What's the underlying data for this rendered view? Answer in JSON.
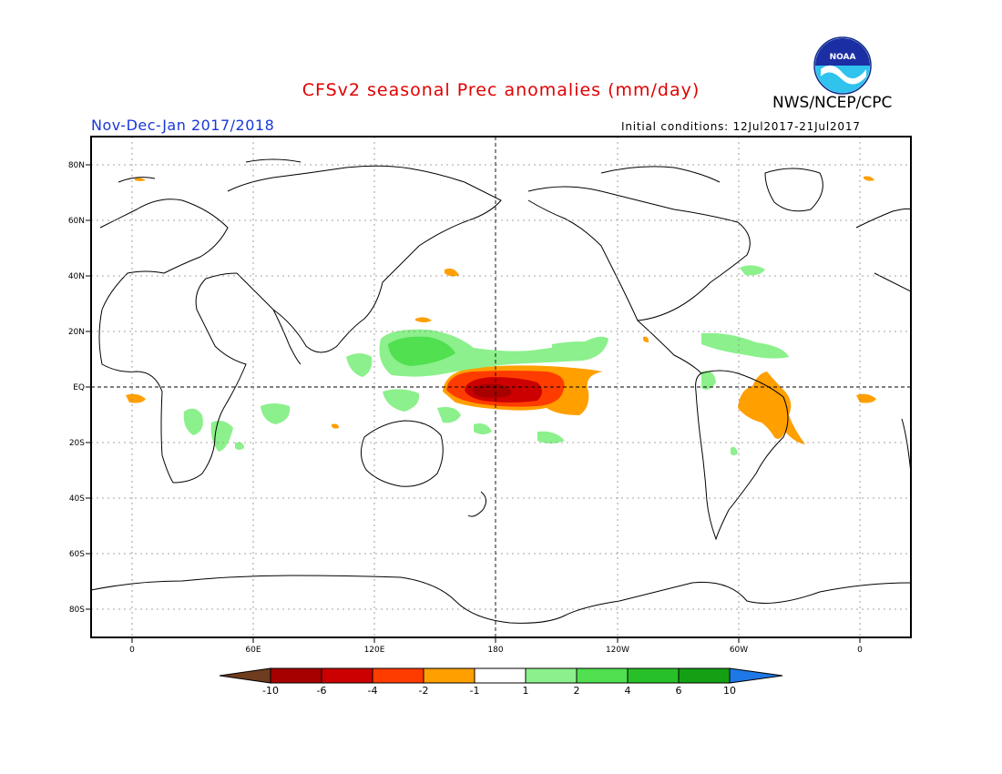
{
  "header": {
    "title": "CFSv2 seasonal Prec anomalies (mm/day)",
    "agency": "NWS/NCEP/CPC",
    "logo_text": "NOAA",
    "period": "Nov-Dec-Jan 2017/2018",
    "initial_conditions": "Initial conditions: 12Jul2017-21Jul2017"
  },
  "axes": {
    "lat_labels": [
      "80N",
      "60N",
      "40N",
      "20N",
      "EQ",
      "20S",
      "40S",
      "60S",
      "80S"
    ],
    "lon_labels": [
      "0",
      "60E",
      "120E",
      "180",
      "120W",
      "60W",
      "0"
    ]
  },
  "colorbar": {
    "colors": [
      "#6e3c1e",
      "#a60000",
      "#cc0000",
      "#ff3c00",
      "#ff9f00",
      "#ffffff",
      "#8cf08c",
      "#50e050",
      "#28c028",
      "#14a014",
      "#1e78e6"
    ],
    "labels": [
      "-10",
      "-6",
      "-4",
      "-2",
      "-1",
      "1",
      "2",
      "4",
      "6",
      "10"
    ]
  },
  "colors": {
    "title": "#e00000",
    "period": "#1a37d8",
    "dry_strong": "#cc0000",
    "dry_mid": "#ff3c00",
    "dry_light": "#ff9f00",
    "wet_light": "#8cf08c",
    "wet_mid": "#50e050"
  }
}
